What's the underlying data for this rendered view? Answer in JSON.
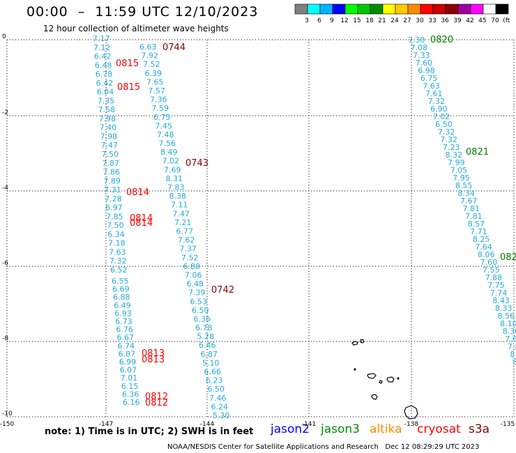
{
  "header": {
    "title": "00:00  –  11:59 UTC 12/10/2023",
    "subtitle": "12 hour collection of altimeter wave heights"
  },
  "scale": {
    "colors": [
      "#808080",
      "#00ffff",
      "#00b4ff",
      "#0000ff",
      "#00ff00",
      "#00c800",
      "#008c00",
      "#ffff00",
      "#ffc800",
      "#ff8c00",
      "#ff0000",
      "#c80000",
      "#8c0000",
      "#a000a0",
      "#ff00ff",
      "#ffffff",
      "#000000"
    ],
    "labels": [
      "3",
      "6",
      "9",
      "12",
      "15",
      "18",
      "21",
      "24",
      "27",
      "30",
      "33",
      "36",
      "39",
      "42",
      "45",
      "70",
      "(ft)"
    ]
  },
  "axes": {
    "x_labels": [
      "-150",
      "-147",
      "-144",
      "-141",
      "-138",
      "-135"
    ],
    "y_labels": [
      "0",
      "-2",
      "-4",
      "-6",
      "-8",
      "-10"
    ]
  },
  "map_data": {
    "track_a": {
      "color": "#22aadd",
      "values": [
        "7.17",
        "7.12",
        "6.42",
        "6.48",
        "6.78",
        "6.42",
        "6.04",
        "7.35",
        "7.58",
        "7.98",
        "7.40",
        "7.98",
        "7.47",
        "7.50",
        "7.87",
        "7.86",
        "7.89",
        "7.31",
        "7.28",
        "6.97",
        "7.85",
        "7.50",
        "6.34",
        "7.18",
        "7.63",
        "7.32",
        "6.52"
      ]
    },
    "track_b": {
      "color": "#22aadd",
      "values": [
        "6.63",
        "7.92",
        "7.52",
        "6.39",
        "7.65",
        "7.57",
        "7.36",
        "7.59",
        "6.75",
        "7.45",
        "7.48",
        "7.56",
        "8.49",
        "7.02",
        "7.69",
        "8.31",
        "7.83",
        "8.38",
        "7.11",
        "7.47",
        "7.21",
        "6.77",
        "7.62",
        "7.37",
        "7.52",
        "6.88",
        "7.06",
        "6.48",
        "7.39",
        "6.53",
        "6.50",
        "6.36",
        "6.78",
        "5.28",
        "6.46",
        "6.87",
        "5.10",
        "6.66",
        "6.23",
        "6.50",
        "7.46",
        "6.24",
        "5.30"
      ]
    },
    "track_c": {
      "color": "#22aadd",
      "values": [
        "6.55",
        "6.69",
        "6.88",
        "6.49",
        "6.93",
        "6.73",
        "6.76",
        "6.67",
        "6.74",
        "6.87",
        "6.99",
        "6.07",
        "7.01",
        "6.15",
        "6.36",
        "6.16"
      ]
    },
    "track_d": {
      "color": "#22aadd",
      "values": [
        "7.30",
        "7.08",
        "7.33",
        "7.60",
        "6.98",
        "6.75",
        "7.63",
        "7.61",
        "7.32",
        "6.90",
        "7.02",
        "6.50",
        "7.32",
        "7.32",
        "7.23",
        "8.32",
        "7.99",
        "7.05",
        "7.95",
        "8.55",
        "8.34",
        "7.67",
        "7.81",
        "7.81",
        "8.57",
        "7.71",
        "8.25",
        "7.64",
        "8.06",
        "7.60",
        "7.55",
        "7.88",
        "7.75",
        "7.74",
        "8.43",
        "8.33",
        "8.56",
        "8.10",
        "8.30",
        "7.62",
        "7.8",
        "8",
        "8"
      ]
    },
    "time_labels": [
      {
        "text": "0744",
        "color": "#8b0000"
      },
      {
        "text": "0815",
        "color": "#ff0000"
      },
      {
        "text": "0815",
        "color": "#ff0000"
      },
      {
        "text": "0743",
        "color": "#8b0000"
      },
      {
        "text": "0814",
        "color": "#ff0000"
      },
      {
        "text": "0814",
        "color": "#ff0000"
      },
      {
        "text": "0814",
        "color": "#ff0000"
      },
      {
        "text": "0742",
        "color": "#8b0000"
      },
      {
        "text": "0813",
        "color": "#ff0000"
      },
      {
        "text": "0813",
        "color": "#ff0000"
      },
      {
        "text": "0812",
        "color": "#ff0000"
      },
      {
        "text": "0812",
        "color": "#ff0000"
      },
      {
        "text": "0820",
        "color": "#008000"
      },
      {
        "text": "0821",
        "color": "#008000"
      },
      {
        "text": "082",
        "color": "#008000"
      }
    ]
  },
  "footer": {
    "note": "note:  1) Time is in UTC; 2) SWH is in feet",
    "satellites": [
      {
        "name": "jason2",
        "color": "#0000ff"
      },
      {
        "name": "jason3",
        "color": "#008c00"
      },
      {
        "name": "altika",
        "color": "#ff8c00"
      },
      {
        "name": "cryosat",
        "color": "#ff0000"
      },
      {
        "name": "s3a",
        "color": "#8b0000"
      }
    ],
    "credit": "NOAA/NESDIS Center for Satellite Applications and Research",
    "timestamp": "Dec 12 08:29:29 UTC 2023"
  }
}
